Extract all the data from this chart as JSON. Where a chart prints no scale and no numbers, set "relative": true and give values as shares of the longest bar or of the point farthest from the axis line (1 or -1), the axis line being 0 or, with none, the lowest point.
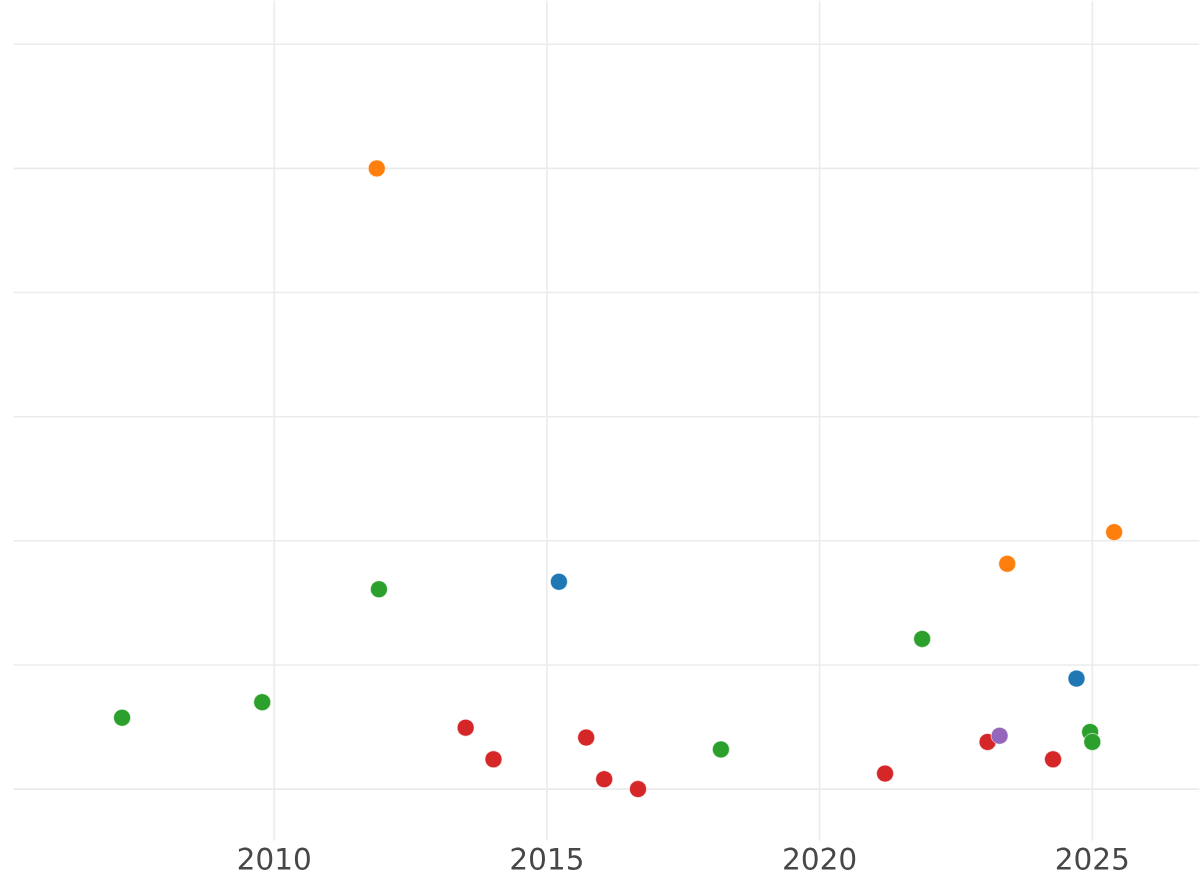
{
  "chart_data": {
    "type": "scatter",
    "relative": true,
    "grid": true,
    "marker": "circle",
    "xlim": [
      2005.22,
      2026.96
    ],
    "xticks": [
      2010,
      2015,
      2020,
      2025
    ],
    "series": [
      {
        "color": "#1f77b4",
        "x": [
          2015.22,
          2024.71
        ],
        "values": [
          0.334,
          0.178
        ]
      },
      {
        "color": "#ff7f0e",
        "x": [
          2011.88,
          2023.44,
          2025.4
        ],
        "values": [
          1.0,
          0.363,
          0.414
        ]
      },
      {
        "color": "#2ca02c",
        "x": [
          2007.21,
          2009.78,
          2011.92,
          2018.19,
          2021.88,
          2024.96,
          2025.0
        ],
        "values": [
          0.115,
          0.14,
          0.322,
          0.064,
          0.242,
          0.092,
          0.076
        ]
      },
      {
        "color": "#d62728",
        "x": [
          2013.51,
          2014.02,
          2015.72,
          2016.05,
          2016.67,
          2021.2,
          2023.08,
          2024.28
        ],
        "values": [
          0.099,
          0.048,
          0.083,
          0.016,
          0.0,
          0.025,
          0.076,
          0.048
        ]
      },
      {
        "color": "#9467bd",
        "x": [
          2023.3
        ],
        "values": [
          0.086
        ]
      }
    ]
  }
}
